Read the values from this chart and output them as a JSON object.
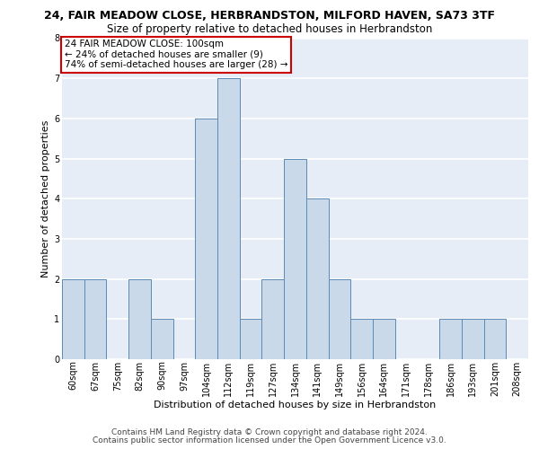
{
  "title1": "24, FAIR MEADOW CLOSE, HERBRANDSTON, MILFORD HAVEN, SA73 3TF",
  "title2": "Size of property relative to detached houses in Herbrandston",
  "xlabel": "Distribution of detached houses by size in Herbrandston",
  "ylabel": "Number of detached properties",
  "footnote1": "Contains HM Land Registry data © Crown copyright and database right 2024.",
  "footnote2": "Contains public sector information licensed under the Open Government Licence v3.0.",
  "categories": [
    "60sqm",
    "67sqm",
    "75sqm",
    "82sqm",
    "90sqm",
    "97sqm",
    "104sqm",
    "112sqm",
    "119sqm",
    "127sqm",
    "134sqm",
    "141sqm",
    "149sqm",
    "156sqm",
    "164sqm",
    "171sqm",
    "178sqm",
    "186sqm",
    "193sqm",
    "201sqm",
    "208sqm"
  ],
  "values": [
    2,
    2,
    0,
    2,
    1,
    0,
    6,
    7,
    1,
    2,
    5,
    4,
    2,
    1,
    1,
    0,
    0,
    1,
    1,
    1,
    0
  ],
  "bar_color": "#c9d9ea",
  "bar_edge_color": "#5b8ab5",
  "bg_color": "#e6edf7",
  "grid_color": "#ffffff",
  "ylim": [
    0,
    8
  ],
  "yticks": [
    0,
    1,
    2,
    3,
    4,
    5,
    6,
    7,
    8
  ],
  "annotation_text": "24 FAIR MEADOW CLOSE: 100sqm\n← 24% of detached houses are smaller (9)\n74% of semi-detached houses are larger (28) →",
  "annotation_box_color": "#ffffff",
  "annotation_box_edge": "#cc0000",
  "subject_bar_index": 6,
  "title1_fontsize": 9,
  "title2_fontsize": 8.5,
  "xlabel_fontsize": 8,
  "ylabel_fontsize": 8,
  "tick_fontsize": 7,
  "annot_fontsize": 7.5,
  "footnote_fontsize": 6.5
}
